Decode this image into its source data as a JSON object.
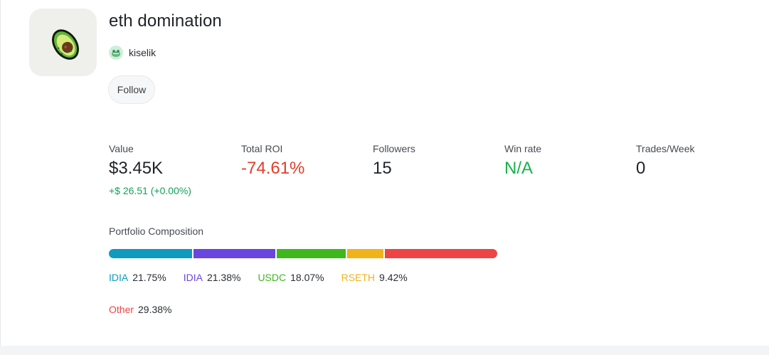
{
  "profile": {
    "title": "eth domination",
    "author": "kiselik",
    "follow_label": "Follow"
  },
  "stats": [
    {
      "label": "Value",
      "value": "$3.45K",
      "sub": "+$ 26.51 (+0.00%)"
    },
    {
      "label": "Total ROI",
      "value": "-74.61%"
    },
    {
      "label": "Followers",
      "value": "15"
    },
    {
      "label": "Win rate",
      "value": "N/A"
    },
    {
      "label": "Trades/Week",
      "value": "0"
    }
  ],
  "composition": {
    "label": "Portfolio Composition",
    "items": [
      {
        "token": "IDIA",
        "pct": "21.75%",
        "value": 21.75,
        "color": "#0f9bbd"
      },
      {
        "token": "IDIA",
        "pct": "21.38%",
        "value": 21.38,
        "color": "#6a45e0"
      },
      {
        "token": "USDC",
        "pct": "18.07%",
        "value": 18.07,
        "color": "#3fb81e"
      },
      {
        "token": "RSETH",
        "pct": "9.42%",
        "value": 9.42,
        "color": "#f0b31a"
      },
      {
        "token": "Other",
        "pct": "29.38%",
        "value": 29.38,
        "color": "#ee4444"
      }
    ]
  },
  "icons": {
    "avatar": "avocado-icon",
    "author_avatar": "frog-avatar-icon"
  }
}
